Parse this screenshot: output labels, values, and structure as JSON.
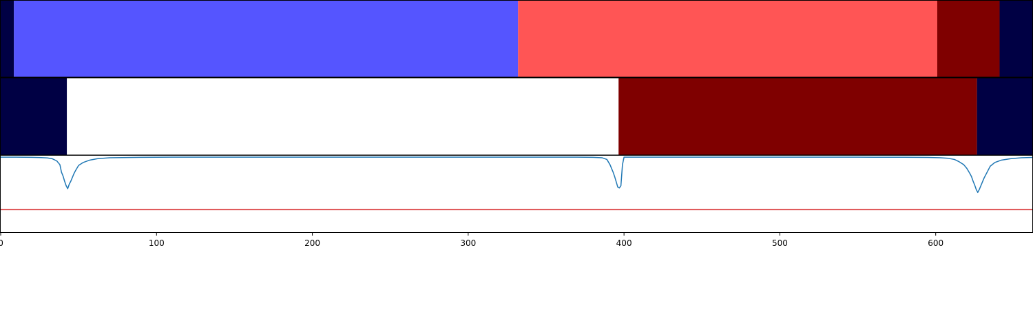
{
  "chart_data": [
    {
      "type": "segments",
      "panel": "top",
      "xlim": [
        0,
        662
      ],
      "segments": [
        {
          "start": 0,
          "end": 8.5,
          "color": "#000044"
        },
        {
          "start": 8.5,
          "end": 332,
          "color": "#5555ff"
        },
        {
          "start": 332,
          "end": 601,
          "color": "#ff5555"
        },
        {
          "start": 601,
          "end": 641,
          "color": "#7f0000"
        },
        {
          "start": 641,
          "end": 662,
          "color": "#000044"
        }
      ]
    },
    {
      "type": "segments",
      "panel": "middle",
      "xlim": [
        0,
        662
      ],
      "segments": [
        {
          "start": 0,
          "end": 42.5,
          "color": "#000044"
        },
        {
          "start": 42.5,
          "end": 396.5,
          "color": "#ffffff"
        },
        {
          "start": 396.5,
          "end": 626.5,
          "color": "#7f0000"
        },
        {
          "start": 626.5,
          "end": 662,
          "color": "#000044"
        }
      ]
    },
    {
      "type": "line",
      "panel": "bottom",
      "xlim": [
        0,
        662
      ],
      "ylim": [
        -1.0,
        0.02
      ],
      "xticks": [
        0,
        100,
        200,
        300,
        400,
        500,
        600
      ],
      "xtick_labels": [
        "0",
        "100",
        "200",
        "300",
        "400",
        "500",
        "600"
      ],
      "threshold": {
        "y": -0.7,
        "color": "#d62728"
      },
      "series": [
        {
          "color": "#1f77b4",
          "x": [
            0,
            10,
            20,
            26,
            30,
            33,
            36,
            38,
            39,
            40,
            41,
            42,
            43,
            44,
            45,
            46,
            47,
            48,
            50,
            53,
            57,
            62,
            70,
            90,
            110,
            150,
            200,
            250,
            300,
            340,
            370,
            380,
            386,
            389,
            391,
            393,
            394,
            395,
            396,
            397,
            398,
            399,
            400,
            402,
            408,
            420,
            450,
            500,
            550,
            580,
            595,
            603,
            608,
            612,
            615,
            618,
            620,
            622,
            623,
            624,
            625,
            626,
            627,
            628,
            629,
            630,
            631,
            632,
            633,
            635,
            638,
            642,
            648,
            655,
            662
          ],
          "y": [
            0,
            0,
            -0.002,
            -0.005,
            -0.01,
            -0.02,
            -0.05,
            -0.1,
            -0.2,
            -0.25,
            -0.32,
            -0.38,
            -0.42,
            -0.36,
            -0.32,
            -0.27,
            -0.22,
            -0.18,
            -0.11,
            -0.07,
            -0.04,
            -0.02,
            -0.008,
            -0.002,
            0,
            0,
            0,
            0,
            0,
            0,
            0,
            -0.002,
            -0.008,
            -0.03,
            -0.1,
            -0.2,
            -0.26,
            -0.33,
            -0.4,
            -0.41,
            -0.38,
            -0.1,
            0,
            0,
            0,
            0,
            0,
            0,
            0,
            -0.001,
            -0.003,
            -0.008,
            -0.015,
            -0.03,
            -0.06,
            -0.1,
            -0.15,
            -0.22,
            -0.26,
            -0.32,
            -0.37,
            -0.43,
            -0.47,
            -0.43,
            -0.38,
            -0.33,
            -0.28,
            -0.24,
            -0.2,
            -0.12,
            -0.07,
            -0.04,
            -0.02,
            -0.008,
            -0.003
          ]
        }
      ]
    }
  ]
}
